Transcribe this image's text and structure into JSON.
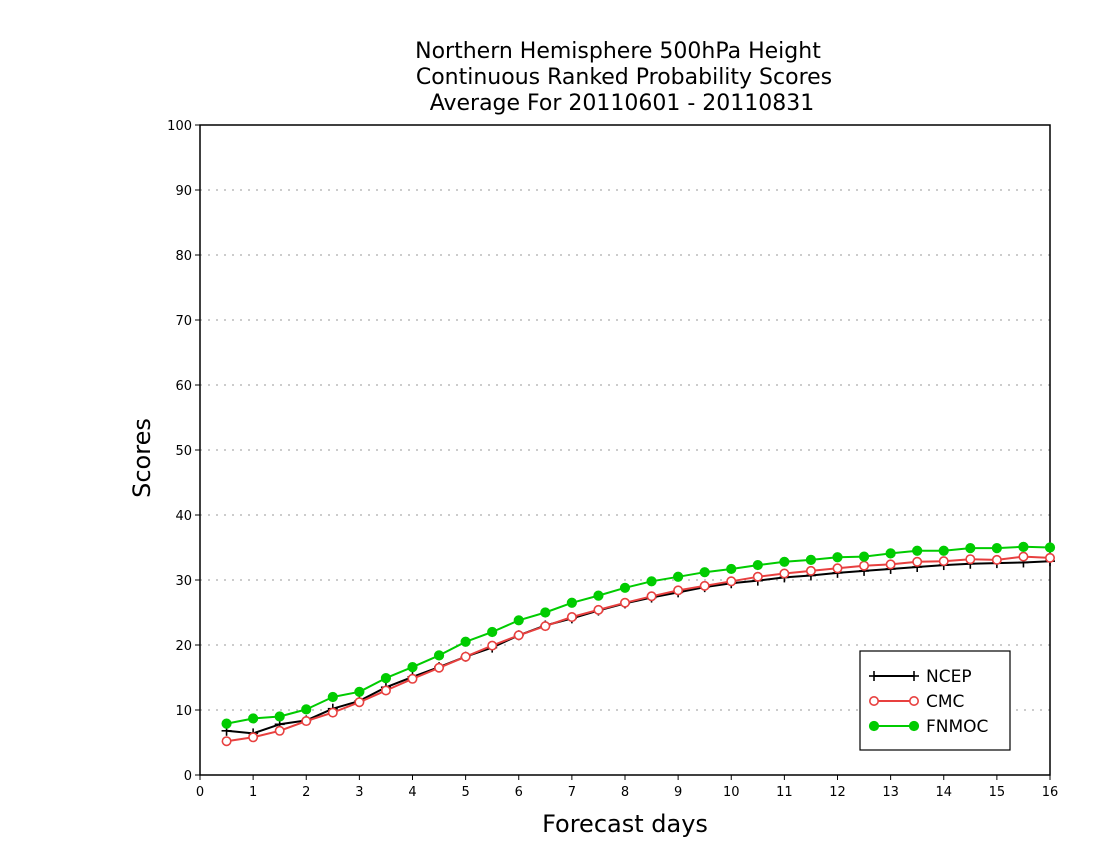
{
  "chart_data": {
    "type": "line",
    "title_lines": [
      "Northern Hemisphere 500hPa Height",
      "Continuous Ranked Probability Scores",
      "Average For 20110601 - 20110831"
    ],
    "xlabel": "Forecast days",
    "ylabel": "Scores",
    "xlim": [
      0,
      16
    ],
    "ylim": [
      0,
      100
    ],
    "x_ticks": [
      "0",
      "1",
      "2",
      "3",
      "4",
      "5",
      "6",
      "7",
      "8",
      "9",
      "10",
      "11",
      "12",
      "13",
      "14",
      "15",
      "16"
    ],
    "y_ticks": [
      "0",
      "10",
      "20",
      "30",
      "40",
      "50",
      "60",
      "70",
      "80",
      "90",
      "100"
    ],
    "grid": "horizontal dotted",
    "legend_position": "bottom-right",
    "x": [
      0.5,
      1.0,
      1.5,
      2.0,
      2.5,
      3.0,
      3.5,
      4.0,
      4.5,
      5.0,
      5.5,
      6.0,
      6.5,
      7.0,
      7.5,
      8.0,
      8.5,
      9.0,
      9.5,
      10.0,
      10.5,
      11.0,
      11.5,
      12.0,
      12.5,
      13.0,
      13.5,
      14.0,
      14.5,
      15.0,
      15.5,
      16.0
    ],
    "series": [
      {
        "name": "NCEP",
        "color": "#000000",
        "marker": "plus",
        "values": [
          6.8,
          6.4,
          7.8,
          8.4,
          10.2,
          11.4,
          13.5,
          15.1,
          16.6,
          18.2,
          19.6,
          21.5,
          23.0,
          24.1,
          25.3,
          26.4,
          27.3,
          28.1,
          28.9,
          29.5,
          29.9,
          30.4,
          30.7,
          31.1,
          31.4,
          31.7,
          32.0,
          32.3,
          32.5,
          32.6,
          32.7,
          32.9
        ]
      },
      {
        "name": "CMC",
        "color": "#e8403f",
        "marker": "open-circle",
        "values": [
          5.2,
          5.8,
          6.8,
          8.3,
          9.6,
          11.2,
          13.0,
          14.8,
          16.5,
          18.2,
          19.9,
          21.5,
          22.9,
          24.3,
          25.4,
          26.5,
          27.5,
          28.4,
          29.1,
          29.8,
          30.5,
          31.0,
          31.4,
          31.8,
          32.2,
          32.4,
          32.8,
          32.9,
          33.2,
          33.1,
          33.6,
          33.4
        ]
      },
      {
        "name": "FNMOC",
        "color": "#00cc00",
        "marker": "filled-circle",
        "values": [
          7.9,
          8.7,
          9.0,
          10.1,
          12.0,
          12.8,
          14.9,
          16.6,
          18.4,
          20.5,
          22.0,
          23.8,
          25.0,
          26.5,
          27.6,
          28.8,
          29.8,
          30.5,
          31.2,
          31.7,
          32.3,
          32.8,
          33.1,
          33.5,
          33.6,
          34.1,
          34.5,
          34.5,
          34.9,
          34.9,
          35.1,
          35.0
        ]
      }
    ]
  }
}
